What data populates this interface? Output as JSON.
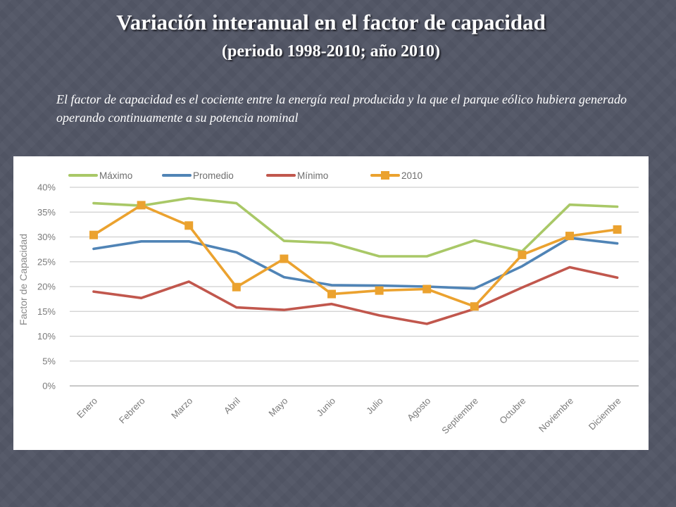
{
  "slide": {
    "title": "Variación interanual en el factor de capacidad",
    "subtitle": "(periodo 1998-2010; año 2010)",
    "note": "El factor de capacidad es el cociente entre la energía real producida y la que el parque eólico hubiera generado operando continuamente a su potencia nominal"
  },
  "chart_data": {
    "type": "line",
    "title": "",
    "xlabel": "",
    "ylabel": "Factor de Capacidad",
    "categories": [
      "Enero",
      "Febrero",
      "Marzo",
      "Abril",
      "Mayo",
      "Junio",
      "Julio",
      "Agosto",
      "Septiembre",
      "Octubre",
      "Noviembre",
      "Diciembre"
    ],
    "yticks": [
      "0%",
      "5%",
      "10%",
      "15%",
      "20%",
      "25%",
      "30%",
      "35%",
      "40%"
    ],
    "ylim": [
      0,
      40
    ],
    "grid": true,
    "legend": "top",
    "series": [
      {
        "name": "Máximo",
        "color": "#a9c867",
        "marker": false,
        "values": [
          36.8,
          36.3,
          37.8,
          36.8,
          29.2,
          28.8,
          26.1,
          26.1,
          29.3,
          27.1,
          36.5,
          36.1
        ]
      },
      {
        "name": "Promedio",
        "color": "#5084b6",
        "marker": false,
        "values": [
          27.6,
          29.1,
          29.1,
          26.9,
          21.9,
          20.3,
          20.2,
          20.0,
          19.6,
          24.1,
          29.8,
          28.7
        ]
      },
      {
        "name": "Mínimo",
        "color": "#c1574d",
        "marker": false,
        "values": [
          19.0,
          17.7,
          21.0,
          15.8,
          15.3,
          16.5,
          14.2,
          12.5,
          15.5,
          19.8,
          23.9,
          21.8
        ]
      },
      {
        "name": "2010",
        "color": "#eba22f",
        "marker": true,
        "values": [
          30.4,
          36.4,
          32.3,
          19.9,
          25.6,
          18.5,
          19.2,
          19.5,
          16.0,
          26.4,
          30.2,
          31.5
        ]
      }
    ]
  }
}
